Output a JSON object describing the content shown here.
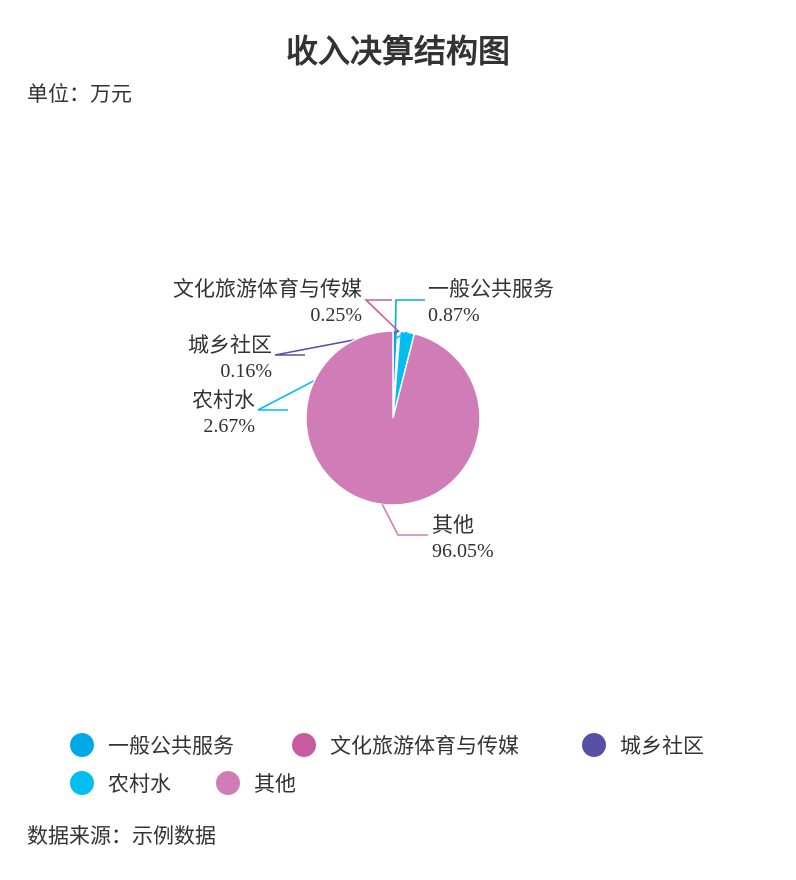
{
  "title": "收入决算结构图",
  "unit_label": "单位：万元",
  "source_label": "数据来源：示例数据",
  "chart_data": {
    "type": "pie",
    "title": "收入决算结构图",
    "unit": "单位：万元",
    "slices": [
      {
        "name": "一般公共服务",
        "percent": 0.87,
        "percent_label": "0.87%",
        "color": "#00a8e8"
      },
      {
        "name": "文化旅游体育与传媒",
        "percent": 0.25,
        "percent_label": "0.25%",
        "color": "#c85aa0"
      },
      {
        "name": "城乡社区",
        "percent": 0.16,
        "percent_label": "0.16%",
        "color": "#5650a6"
      },
      {
        "name": "农村水",
        "percent": 2.67,
        "percent_label": "2.67%",
        "color": "#00bff0"
      },
      {
        "name": "其他",
        "percent": 96.05,
        "percent_label": "96.05%",
        "color": "#d07cb6"
      }
    ],
    "legend_position": "bottom"
  }
}
